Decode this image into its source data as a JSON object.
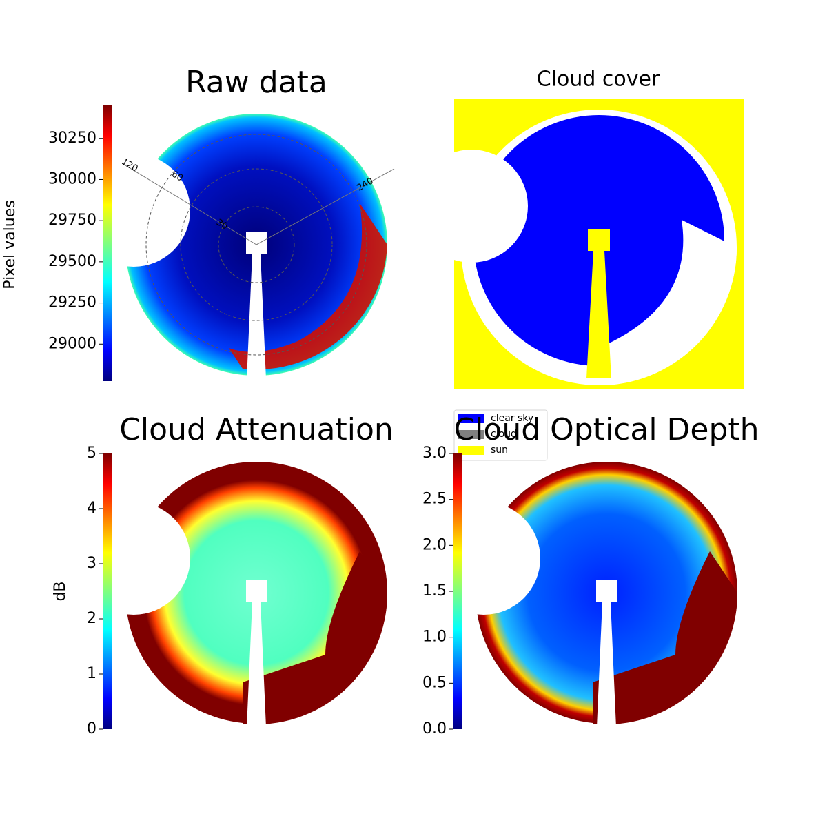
{
  "chart_data": [
    {
      "type": "image",
      "title": "Raw data",
      "colormap": "jet",
      "colorbar_label": "Pixel values",
      "ylim": [
        28775,
        30450
      ],
      "yticks": [
        29000,
        29250,
        29500,
        29750,
        30000,
        30250
      ],
      "polar_labels": [
        "120",
        "240",
        "60",
        "30"
      ]
    },
    {
      "type": "classes",
      "title": "Cloud cover",
      "series": [
        {
          "name": "clear sky",
          "color": "#0000ff"
        },
        {
          "name": "cloud",
          "color": "#808080"
        },
        {
          "name": "sun",
          "color": "#ffff00"
        }
      ]
    },
    {
      "type": "image",
      "title": "Cloud Attenuation",
      "colormap": "jet",
      "colorbar_label": "dB",
      "ylim": [
        0,
        5
      ],
      "yticks": [
        0,
        1,
        2,
        3,
        4,
        5
      ]
    },
    {
      "type": "image",
      "title": "Cloud Optical Depth",
      "colormap": "jet",
      "ylim": [
        0,
        3
      ],
      "yticks": [
        {
          "value": 0,
          "label": "0.0"
        },
        {
          "value": 0.5,
          "label": "0.5"
        },
        {
          "value": 1,
          "label": "1.0"
        },
        {
          "value": 1.5,
          "label": "1.5"
        },
        {
          "value": 2,
          "label": "2.0"
        },
        {
          "value": 2.5,
          "label": "2.5"
        },
        {
          "value": 3,
          "label": "3.0"
        }
      ]
    }
  ]
}
